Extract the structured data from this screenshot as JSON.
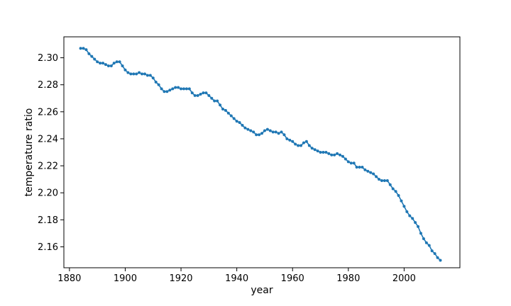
{
  "chart_data": {
    "type": "line",
    "title": "",
    "xlabel": "year",
    "ylabel": "temperature ratio",
    "xlim": [
      1878,
      2020
    ],
    "ylim": [
      2.1445,
      2.3155
    ],
    "xticks": [
      1880,
      1900,
      1920,
      1940,
      1960,
      1980,
      2000
    ],
    "xtick_labels": [
      "1880",
      "1900",
      "1920",
      "1940",
      "1960",
      "1980",
      "2000"
    ],
    "yticks": [
      2.16,
      2.18,
      2.2,
      2.22,
      2.24,
      2.26,
      2.28,
      2.3
    ],
    "ytick_labels": [
      "2.16",
      "2.18",
      "2.20",
      "2.22",
      "2.24",
      "2.26",
      "2.28",
      "2.30"
    ],
    "grid": false,
    "line_color": "#1f77b4",
    "series": [
      {
        "x": [
          1884,
          1885,
          1886,
          1887,
          1888,
          1889,
          1890,
          1891,
          1892,
          1893,
          1894,
          1895,
          1896,
          1897,
          1898,
          1899,
          1900,
          1901,
          1902,
          1903,
          1904,
          1905,
          1906,
          1907,
          1908,
          1909,
          1910,
          1911,
          1912,
          1913,
          1914,
          1915,
          1916,
          1917,
          1918,
          1919,
          1920,
          1921,
          1922,
          1923,
          1924,
          1925,
          1926,
          1927,
          1928,
          1929,
          1930,
          1931,
          1932,
          1933,
          1934,
          1935,
          1936,
          1937,
          1938,
          1939,
          1940,
          1941,
          1942,
          1943,
          1944,
          1945,
          1946,
          1947,
          1948,
          1949,
          1950,
          1951,
          1952,
          1953,
          1954,
          1955,
          1956,
          1957,
          1958,
          1959,
          1960,
          1961,
          1962,
          1963,
          1964,
          1965,
          1966,
          1967,
          1968,
          1969,
          1970,
          1971,
          1972,
          1973,
          1974,
          1975,
          1976,
          1977,
          1978,
          1979,
          1980,
          1981,
          1982,
          1983,
          1984,
          1985,
          1986,
          1987,
          1988,
          1989,
          1990,
          1991,
          1992,
          1993,
          1994,
          1995,
          1996,
          1997,
          1998,
          1999,
          2000,
          2001,
          2002,
          2003,
          2004,
          2005,
          2006,
          2007,
          2008,
          2009,
          2010,
          2011,
          2012,
          2013
        ],
        "y": [
          2.307,
          2.307,
          2.306,
          2.303,
          2.301,
          2.299,
          2.297,
          2.296,
          2.296,
          2.295,
          2.294,
          2.294,
          2.296,
          2.297,
          2.297,
          2.294,
          2.291,
          2.289,
          2.288,
          2.288,
          2.288,
          2.289,
          2.288,
          2.288,
          2.287,
          2.287,
          2.285,
          2.282,
          2.28,
          2.277,
          2.275,
          2.275,
          2.276,
          2.277,
          2.278,
          2.278,
          2.277,
          2.277,
          2.277,
          2.277,
          2.274,
          2.272,
          2.272,
          2.273,
          2.274,
          2.274,
          2.272,
          2.27,
          2.268,
          2.268,
          2.265,
          2.262,
          2.261,
          2.259,
          2.257,
          2.255,
          2.253,
          2.252,
          2.25,
          2.248,
          2.247,
          2.246,
          2.245,
          2.243,
          2.243,
          2.244,
          2.246,
          2.247,
          2.246,
          2.245,
          2.245,
          2.244,
          2.245,
          2.243,
          2.24,
          2.239,
          2.238,
          2.236,
          2.235,
          2.235,
          2.237,
          2.238,
          2.235,
          2.233,
          2.232,
          2.231,
          2.23,
          2.23,
          2.23,
          2.229,
          2.228,
          2.228,
          2.229,
          2.228,
          2.227,
          2.225,
          2.223,
          2.222,
          2.222,
          2.219,
          2.219,
          2.219,
          2.217,
          2.216,
          2.215,
          2.214,
          2.212,
          2.21,
          2.209,
          2.209,
          2.209,
          2.206,
          2.203,
          2.201,
          2.198,
          2.194,
          2.19,
          2.186,
          2.183,
          2.181,
          2.178,
          2.175,
          2.17,
          2.166,
          2.163,
          2.161,
          2.157,
          2.155,
          2.152,
          2.15
        ]
      }
    ]
  }
}
